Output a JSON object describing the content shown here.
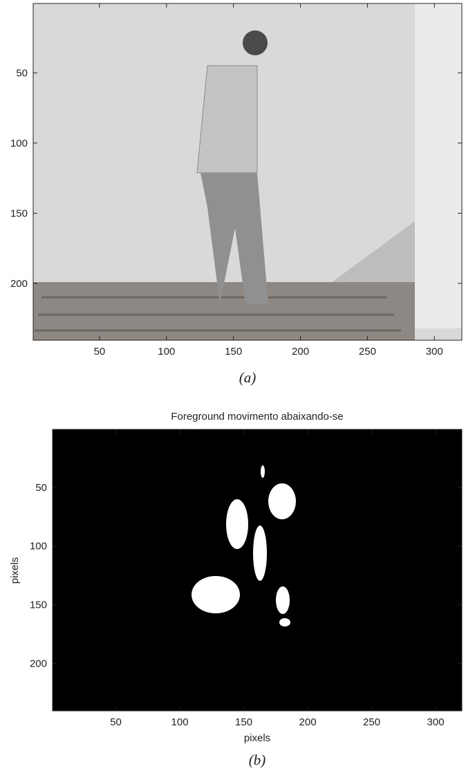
{
  "chart_data": [
    {
      "type": "image",
      "caption": "(a)",
      "xlim": [
        0.5,
        320.5
      ],
      "ylim": [
        240.5,
        0.5
      ],
      "xticks": [
        50,
        100,
        150,
        200,
        250,
        300
      ],
      "yticks": [
        50,
        100,
        150,
        200
      ]
    },
    {
      "type": "image",
      "title": "Foreground movimento abaixando-se",
      "x_label": "pixels",
      "y_label": "pixels",
      "caption": "(b)",
      "xlim": [
        0.5,
        320.5
      ],
      "ylim": [
        240.5,
        0.5
      ],
      "xticks": [
        50,
        100,
        150,
        200,
        250,
        300
      ],
      "yticks": [
        50,
        100,
        150,
        200
      ]
    }
  ]
}
